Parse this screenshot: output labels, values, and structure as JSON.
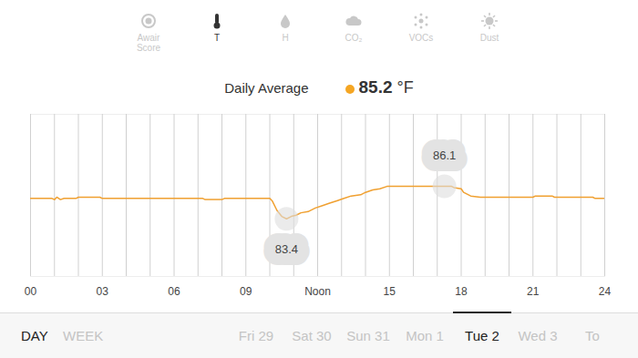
{
  "chart_data": {
    "type": "line",
    "x": [
      0,
      0.9,
      1.0,
      1.1,
      1.25,
      1.4,
      1.9,
      2.0,
      2.9,
      3.0,
      7.2,
      7.3,
      8.0,
      8.1,
      10.0,
      10.1,
      10.3,
      10.5,
      10.7,
      10.9,
      11.1,
      11.3,
      11.6,
      11.9,
      12.2,
      12.5,
      12.8,
      13.1,
      13.4,
      13.8,
      14.0,
      14.3,
      14.6,
      14.9,
      17.6,
      17.7,
      18.0,
      18.1,
      18.4,
      18.8,
      21.0,
      21.1,
      21.8,
      21.9,
      23.5,
      23.6,
      24.0
    ],
    "values": [
      85.1,
      85.1,
      85.0,
      85.2,
      85.0,
      85.1,
      85.1,
      85.2,
      85.2,
      85.1,
      85.1,
      85.0,
      85.0,
      85.1,
      85.1,
      84.9,
      84.1,
      83.6,
      83.4,
      83.6,
      83.7,
      83.9,
      84.0,
      84.3,
      84.5,
      84.7,
      84.9,
      85.1,
      85.3,
      85.4,
      85.6,
      85.8,
      85.9,
      86.1,
      86.1,
      86.0,
      85.9,
      85.6,
      85.3,
      85.2,
      85.2,
      85.3,
      85.3,
      85.2,
      85.2,
      85.1,
      85.1
    ],
    "color": "#f0a030",
    "xlim": [
      0,
      24
    ],
    "xticks": [
      {
        "value": 0,
        "label": "00"
      },
      {
        "value": 3,
        "label": "03"
      },
      {
        "value": 6,
        "label": "06"
      },
      {
        "value": 9,
        "label": "09"
      },
      {
        "value": 12,
        "label": "Noon"
      },
      15,
      18,
      21,
      24
    ],
    "ylim": [
      78.6,
      92.1
    ],
    "yticks": [],
    "grid": true,
    "tick_labels": "x",
    "annotations": [
      {
        "x": 17.3,
        "y": 86.1,
        "text": "86.1"
      },
      {
        "x": 10.7,
        "y": 83.4,
        "text": "83.4"
      }
    ]
  },
  "ui": {
    "tabs": [
      "Awair Score",
      "T",
      "H",
      "CO₂",
      "VOCs",
      "Dust"
    ],
    "selected_tab": "T",
    "summary": {
      "label": "Daily Average",
      "value": 85.2,
      "unit": "°F",
      "color": "#f5a623"
    },
    "periods": [
      "DAY",
      "WEEK"
    ],
    "selected_period": "DAY",
    "days": [
      "Fri 29",
      "Sat 30",
      "Sun 31",
      "Mon 1",
      "Tue 2",
      "Wed 3",
      "To"
    ],
    "selected_day": "Tue 2"
  }
}
